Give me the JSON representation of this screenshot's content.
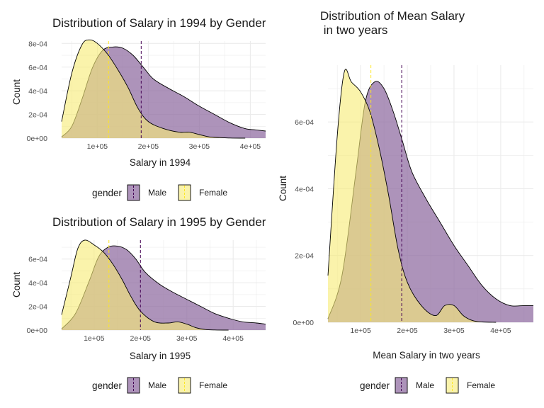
{
  "colors": {
    "male_fill": "#8e6aa0",
    "female_fill": "#f7ec77",
    "male_line": "#440154",
    "female_line": "#fde725",
    "grid": "#ebebeb"
  },
  "legend": {
    "title": "gender",
    "labels": [
      "Male",
      "Female"
    ]
  },
  "chart_data": [
    {
      "type": "area",
      "title": "Distribution of Salary in 1994 by Gender",
      "xlabel": "Salary in 1994",
      "ylabel": "Count",
      "xlim": [
        30000,
        430000
      ],
      "ylim": [
        0,
        0.00082
      ],
      "xticks": [
        100000,
        200000,
        300000,
        400000
      ],
      "xtick_labels": [
        "1e+05",
        "2e+05",
        "3e+05",
        "4e+05"
      ],
      "yticks": [
        0,
        0.0002,
        0.0004,
        0.0006,
        0.0008
      ],
      "ytick_labels": [
        "0e+00",
        "2e-04",
        "4e-04",
        "6e-04",
        "8e-04"
      ],
      "means": {
        "Male": 186000,
        "Female": 122000
      },
      "series": [
        {
          "name": "Male",
          "x": [
            30000,
            50000,
            70000,
            90000,
            110000,
            130000,
            150000,
            170000,
            190000,
            210000,
            240000,
            270000,
            300000,
            330000,
            360000,
            390000,
            410000,
            430000
          ],
          "y": [
            1e-05,
            0.0001,
            0.00033,
            0.00059,
            0.00074,
            0.00077,
            0.00076,
            0.0007,
            0.0006,
            0.0005,
            0.00042,
            0.00035,
            0.00027,
            0.0002,
            0.00013,
            8e-05,
            7e-05,
            6e-05
          ]
        },
        {
          "name": "Female",
          "x": [
            30000,
            50000,
            70000,
            85000,
            100000,
            120000,
            140000,
            160000,
            180000,
            200000,
            230000,
            260000,
            280000,
            300000,
            320000,
            340000,
            360000,
            390000
          ],
          "y": [
            0.00014,
            0.00055,
            0.00079,
            0.00083,
            0.0008,
            0.00071,
            0.00058,
            0.00043,
            0.00025,
            0.00014,
            8e-05,
            5e-05,
            5e-05,
            3e-05,
            1e-05,
            5e-06,
            1e-06,
            0
          ]
        }
      ]
    },
    {
      "type": "area",
      "title": "Distribution of Salary in 1995 by Gender",
      "xlabel": "Salary in 1995",
      "ylabel": "Count",
      "xlim": [
        30000,
        470000
      ],
      "ylim": [
        0,
        0.00076
      ],
      "xticks": [
        100000,
        200000,
        300000,
        400000
      ],
      "xtick_labels": [
        "1e+05",
        "2e+05",
        "3e+05",
        "4e+05"
      ],
      "yticks": [
        0,
        0.0002,
        0.0004,
        0.0006
      ],
      "ytick_labels": [
        "0e+00",
        "2e-04",
        "4e-04",
        "6e-04"
      ],
      "means": {
        "Male": 200000,
        "Female": 132000
      },
      "series": [
        {
          "name": "Male",
          "x": [
            30000,
            60000,
            90000,
            110000,
            130000,
            150000,
            170000,
            190000,
            210000,
            240000,
            270000,
            300000,
            330000,
            360000,
            390000,
            420000,
            450000,
            470000
          ],
          "y": [
            1e-05,
            0.00014,
            0.00042,
            0.00062,
            0.0007,
            0.00071,
            0.00068,
            0.0006,
            0.00049,
            0.00039,
            0.00032,
            0.00026,
            0.0002,
            0.00014,
            0.0001,
            7e-05,
            6e-05,
            5e-05
          ]
        },
        {
          "name": "Female",
          "x": [
            30000,
            50000,
            65000,
            80000,
            100000,
            120000,
            140000,
            160000,
            180000,
            200000,
            230000,
            260000,
            280000,
            300000,
            320000,
            340000,
            360000,
            390000
          ],
          "y": [
            0.00013,
            0.00045,
            0.00069,
            0.00076,
            0.00072,
            0.00066,
            0.00056,
            0.00043,
            0.00028,
            0.00016,
            7e-05,
            6e-05,
            7e-05,
            5e-05,
            2e-05,
            5e-06,
            1e-06,
            0
          ]
        }
      ]
    },
    {
      "type": "area",
      "title": "Distribution of Mean Salary\n in two years",
      "xlabel": "Mean Salary in two years",
      "ylabel": "Count",
      "xlim": [
        30000,
        470000
      ],
      "ylim": [
        0,
        0.00077
      ],
      "xticks": [
        100000,
        200000,
        300000,
        400000
      ],
      "xtick_labels": [
        "1e+05",
        "2e+05",
        "3e+05",
        "4e+05"
      ],
      "yticks": [
        0,
        0.0002,
        0.0004,
        0.0006
      ],
      "ytick_labels": [
        "0e+00",
        "2e-04",
        "4e-04",
        "6e-04"
      ],
      "means": {
        "Male": 188000,
        "Female": 122000
      },
      "series": [
        {
          "name": "Male",
          "x": [
            30000,
            60000,
            90000,
            110000,
            130000,
            150000,
            170000,
            190000,
            210000,
            240000,
            270000,
            300000,
            330000,
            360000,
            390000,
            420000,
            450000,
            470000
          ],
          "y": [
            1e-05,
            0.00014,
            0.00045,
            0.00066,
            0.00072,
            0.0007,
            0.00063,
            0.00054,
            0.00045,
            0.00037,
            0.0003,
            0.00023,
            0.00017,
            0.00011,
            7e-05,
            5e-05,
            5e-05,
            5e-05
          ]
        },
        {
          "name": "Female",
          "x": [
            30000,
            50000,
            65000,
            80000,
            100000,
            120000,
            140000,
            160000,
            180000,
            200000,
            230000,
            260000,
            280000,
            300000,
            320000,
            340000,
            360000,
            390000
          ],
          "y": [
            0.00014,
            0.00056,
            0.00075,
            0.00072,
            0.00069,
            0.00063,
            0.00052,
            0.00038,
            0.00022,
            0.00012,
            5e-05,
            2e-05,
            5e-05,
            5e-05,
            2e-05,
            5e-06,
            1e-06,
            0
          ]
        }
      ]
    }
  ]
}
